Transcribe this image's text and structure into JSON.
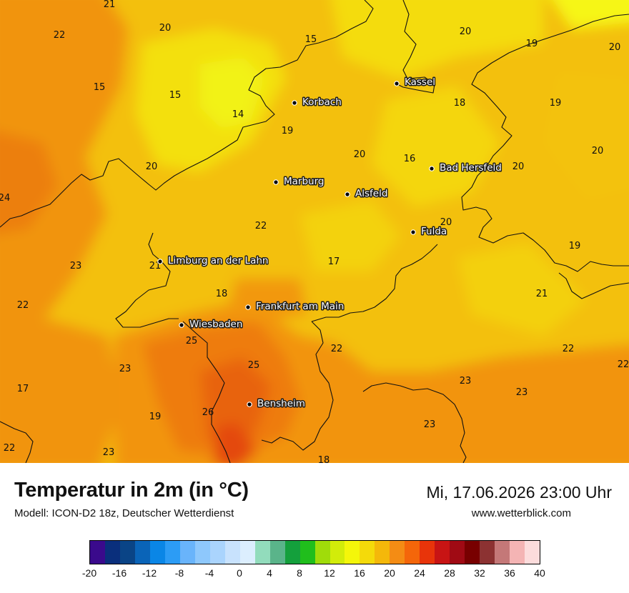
{
  "header": {
    "title": "Temperatur in 2m (in °C)",
    "model": "Modell: ICON-D2 18z, Deutscher Wetterdienst",
    "datetime": "Mi, 17.06.2026 23:00 Uhr",
    "site": "www.wetterblick.com"
  },
  "cities": [
    {
      "name": "Kassel"
    },
    {
      "name": "Korbach"
    },
    {
      "name": "Bad Hersfeld"
    },
    {
      "name": "Marburg"
    },
    {
      "name": "Alsfeld"
    },
    {
      "name": "Fulda"
    },
    {
      "name": "Limburg an der Lahn"
    },
    {
      "name": "Frankfurt am Main"
    },
    {
      "name": "Wiesbaden"
    },
    {
      "name": "Bensheim"
    }
  ],
  "temperature_values": [
    "21",
    "22",
    "20",
    "15",
    "20",
    "19",
    "20",
    "15",
    "15",
    "14",
    "19",
    "18",
    "19",
    "20",
    "16",
    "20",
    "20",
    "24",
    "20",
    "22",
    "17",
    "23",
    "21",
    "18",
    "20",
    "19",
    "22",
    "21",
    "25",
    "22",
    "23",
    "25",
    "23",
    "22",
    "17",
    "26",
    "19",
    "23",
    "22",
    "22",
    "23",
    "23",
    "18"
  ],
  "legend": {
    "ticks": [
      "-20",
      "-16",
      "-12",
      "-8",
      "-4",
      "0",
      "4",
      "8",
      "12",
      "16",
      "20",
      "24",
      "28",
      "32",
      "36",
      "40"
    ],
    "colors": [
      "#3a0a8c",
      "#0a2f7c",
      "#0a4486",
      "#0a64b8",
      "#0a86e6",
      "#2c9cf5",
      "#69b4fb",
      "#8ec8fc",
      "#aad4fd",
      "#c8e2fd",
      "#dceefe",
      "#92dcbc",
      "#5ab48a",
      "#14a03c",
      "#20be1c",
      "#a0dc0a",
      "#d2ec0a",
      "#f4f60a",
      "#f4da0a",
      "#f4b80a",
      "#f48c14",
      "#f4660a",
      "#e8340a",
      "#c81414",
      "#a00a14",
      "#780000",
      "#8c3232",
      "#c47878",
      "#f4b4b4",
      "#fcdcdc"
    ]
  }
}
